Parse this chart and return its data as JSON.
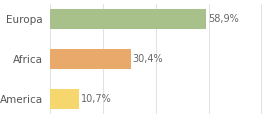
{
  "categories": [
    "America",
    "Africa",
    "Europa"
  ],
  "values": [
    10.7,
    30.4,
    58.9
  ],
  "bar_colors": [
    "#f5d76e",
    "#e8a96b",
    "#a8c18a"
  ],
  "labels": [
    "10,7%",
    "30,4%",
    "58,9%"
  ],
  "background_color": "#ffffff",
  "xlim": [
    0,
    85
  ],
  "bar_height": 0.5,
  "label_fontsize": 7,
  "tick_fontsize": 7.5,
  "grid_color": "#dddddd"
}
